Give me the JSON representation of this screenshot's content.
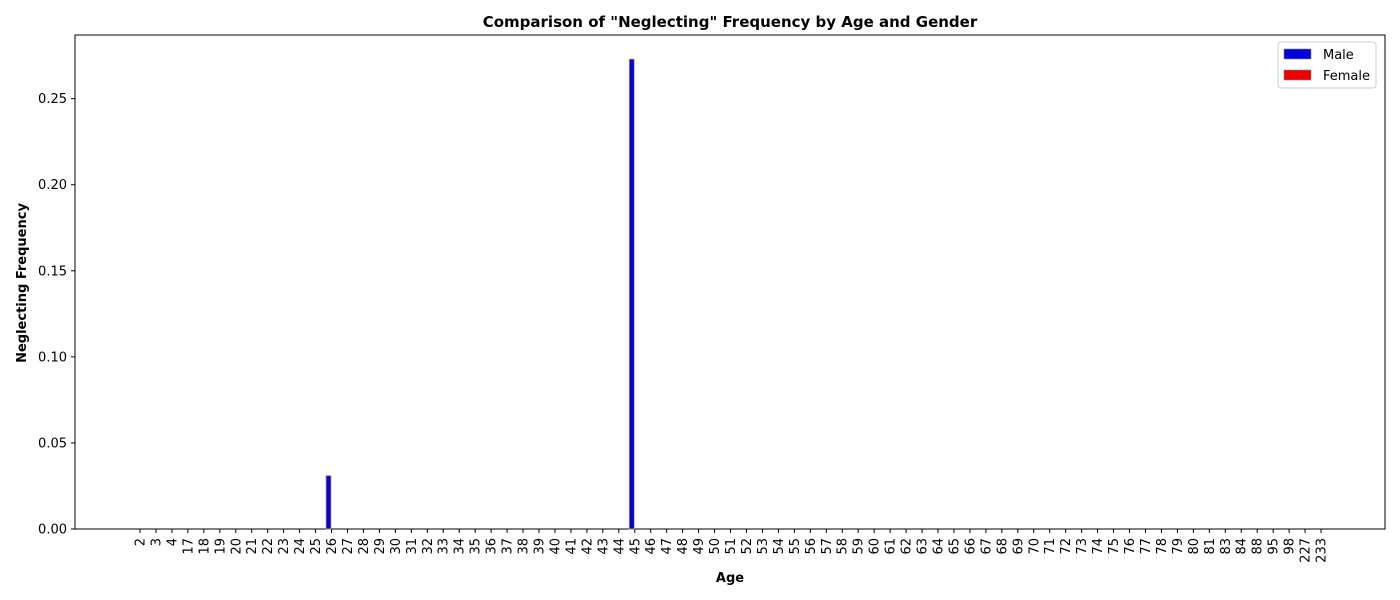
{
  "chart_data": {
    "type": "bar",
    "title": "Comparison of \"Neglecting\" Frequency by Age and Gender",
    "xlabel": "Age",
    "ylabel": "Neglecting Frequency",
    "ylim": [
      0,
      0.287
    ],
    "yticks": [
      0.0,
      0.05,
      0.1,
      0.15,
      0.2,
      0.25
    ],
    "ytick_labels": [
      "0.00",
      "0.05",
      "0.10",
      "0.15",
      "0.20",
      "0.25"
    ],
    "legend_position": "top-right",
    "grid": false,
    "categories": [
      "2",
      "3",
      "4",
      "17",
      "18",
      "19",
      "20",
      "21",
      "22",
      "23",
      "24",
      "25",
      "26",
      "27",
      "28",
      "29",
      "30",
      "31",
      "32",
      "33",
      "34",
      "35",
      "36",
      "37",
      "38",
      "39",
      "40",
      "41",
      "42",
      "43",
      "44",
      "45",
      "46",
      "47",
      "48",
      "49",
      "50",
      "51",
      "52",
      "53",
      "54",
      "55",
      "56",
      "57",
      "58",
      "59",
      "60",
      "61",
      "62",
      "63",
      "64",
      "65",
      "66",
      "67",
      "68",
      "69",
      "70",
      "71",
      "72",
      "73",
      "74",
      "75",
      "76",
      "77",
      "78",
      "79",
      "80",
      "81",
      "83",
      "84",
      "88",
      "95",
      "98",
      "227",
      "233"
    ],
    "series": [
      {
        "name": "Male",
        "color": "#0000dd",
        "values": [
          0,
          0,
          0,
          0,
          0,
          0,
          0,
          0,
          0,
          0,
          0,
          0,
          0.031,
          0,
          0,
          0,
          0,
          0,
          0,
          0,
          0,
          0,
          0,
          0,
          0,
          0,
          0,
          0,
          0,
          0,
          0,
          0.273,
          0,
          0,
          0,
          0,
          0,
          0,
          0,
          0,
          0,
          0,
          0,
          0,
          0,
          0,
          0,
          0,
          0,
          0,
          0,
          0,
          0,
          0,
          0,
          0,
          0,
          0,
          0,
          0,
          0,
          0,
          0,
          0,
          0,
          0,
          0,
          0,
          0,
          0,
          0,
          0,
          0,
          0,
          0
        ]
      },
      {
        "name": "Female",
        "color": "#ee0000",
        "values": [
          0,
          0,
          0,
          0,
          0,
          0,
          0,
          0,
          0,
          0,
          0,
          0,
          0,
          0,
          0,
          0,
          0,
          0,
          0,
          0,
          0,
          0,
          0,
          0,
          0,
          0,
          0,
          0,
          0,
          0,
          0,
          0,
          0,
          0,
          0,
          0,
          0,
          0,
          0,
          0,
          0,
          0,
          0,
          0,
          0,
          0,
          0,
          0,
          0,
          0,
          0,
          0,
          0,
          0,
          0,
          0,
          0,
          0,
          0,
          0,
          0,
          0,
          0,
          0,
          0,
          0,
          0,
          0,
          0,
          0,
          0,
          0,
          0,
          0,
          0
        ]
      }
    ]
  }
}
